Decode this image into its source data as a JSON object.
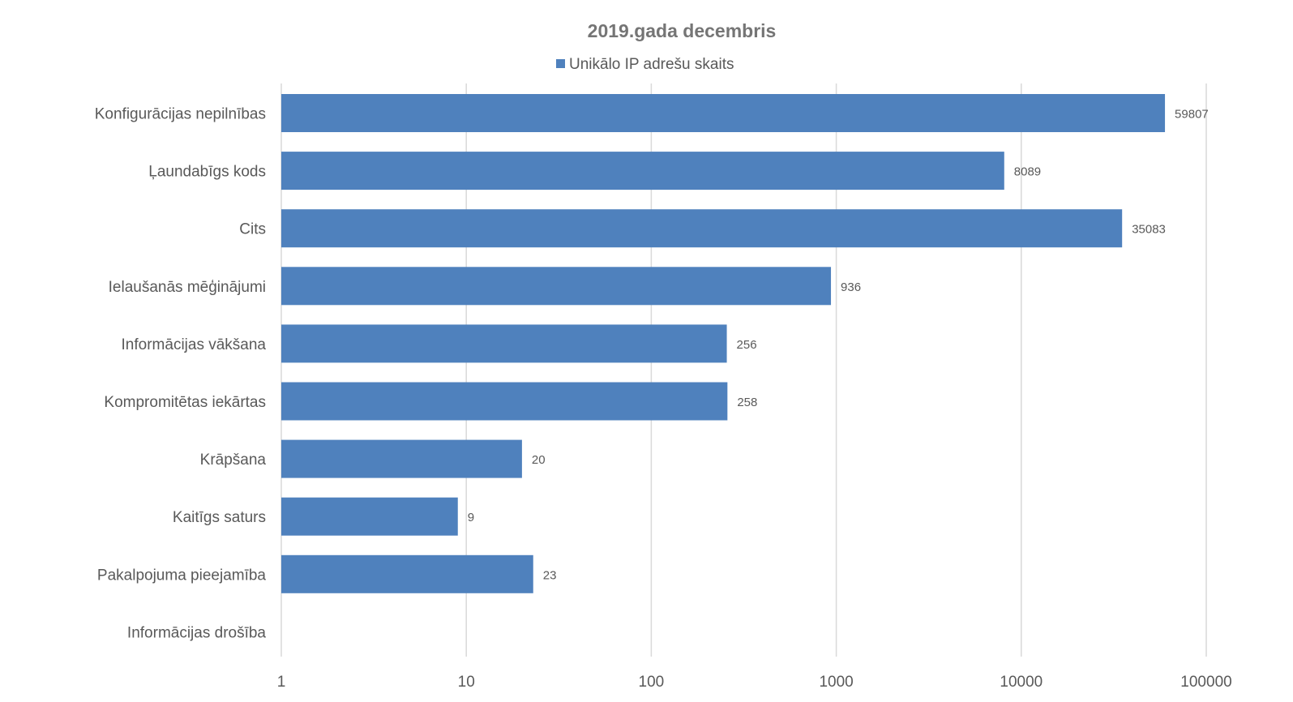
{
  "chart_data": {
    "type": "bar",
    "orientation": "horizontal",
    "title": "2019.gada decembris",
    "xscale": "log",
    "xlim": [
      1,
      100000
    ],
    "xticks": [
      "1",
      "10",
      "100",
      "1000",
      "10000",
      "100000"
    ],
    "grid": true,
    "legend_position": "top",
    "categories": [
      "Konfigurācijas nepilnības",
      "Ļaundabīgs kods",
      "Cits",
      "Ielaušanās mēģinājumi",
      "Informācijas vākšana",
      "Kompromitētas iekārtas",
      "Krāpšana",
      "Kaitīgs saturs",
      "Pakalpojuma pieejamība",
      "Informācijas drošība"
    ],
    "series": [
      {
        "name": "Unikālo IP adrešu skaits",
        "color": "#4f81bd",
        "values": [
          59807,
          8089,
          35083,
          936,
          256,
          258,
          20,
          9,
          23,
          null
        ],
        "labels": [
          "59807",
          "8089",
          "35083",
          "936",
          "256",
          "258",
          "20",
          "9",
          "23",
          ""
        ]
      }
    ]
  }
}
